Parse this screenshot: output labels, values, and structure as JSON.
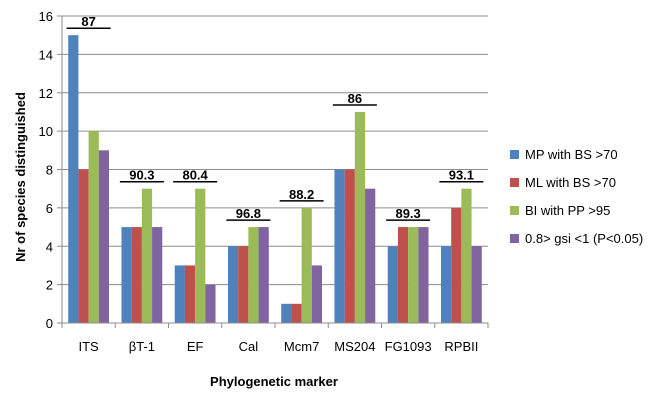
{
  "chart_data": {
    "type": "bar",
    "title": "",
    "xlabel": "Phylogenetic marker",
    "ylabel": "Nr of species distinguished",
    "ylim": [
      0,
      16
    ],
    "y_ticks": [
      0,
      2,
      4,
      6,
      8,
      10,
      12,
      14,
      16
    ],
    "grid": "horizontal",
    "legend_position": "right",
    "categories": [
      "ITS",
      "βT-1",
      "EF",
      "Cal",
      "Mcm7",
      "MS204",
      "FG1093",
      "RPBII"
    ],
    "series": [
      {
        "name": "MP with BS >70",
        "color": "#4f81bd",
        "values": [
          15,
          5,
          3,
          4,
          1,
          8,
          4,
          4
        ]
      },
      {
        "name": "ML with BS >70",
        "color": "#c0504d",
        "values": [
          8,
          5,
          3,
          4,
          1,
          8,
          5,
          6
        ]
      },
      {
        "name": "BI with PP >95",
        "color": "#9bbb59",
        "values": [
          10,
          7,
          7,
          5,
          6,
          11,
          5,
          7
        ]
      },
      {
        "name": "0.8> gsi <1 (P<0.05)",
        "color": "#8064a2",
        "values": [
          9,
          5,
          2,
          5,
          3,
          7,
          5,
          4
        ]
      }
    ],
    "annotations": [
      "87",
      "90.3",
      "80.4",
      "96.8",
      "88.2",
      "86",
      "89.3",
      "93.1"
    ]
  }
}
